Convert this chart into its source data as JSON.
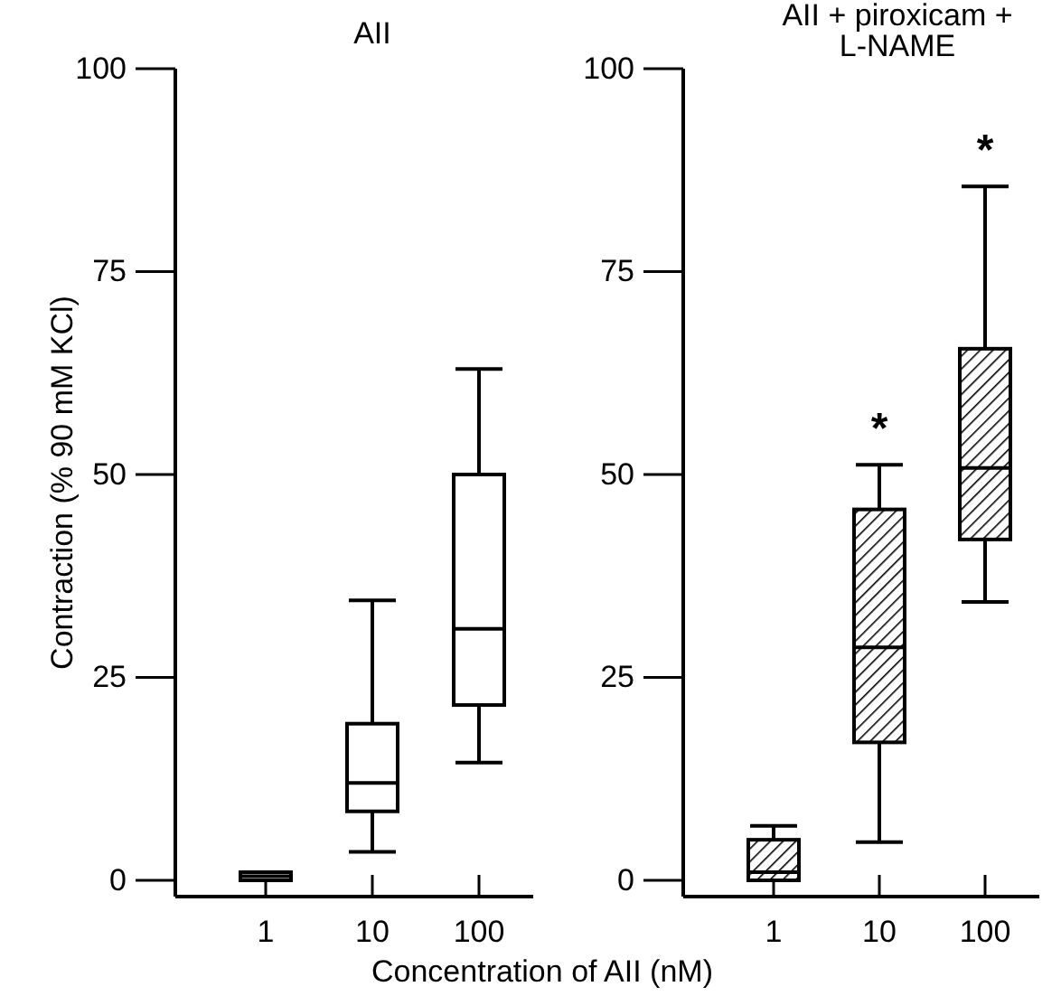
{
  "chart_data": [
    {
      "type": "box",
      "title": "AII",
      "ylabel": "Contraction (% 90 mM KCl)",
      "xlabel": "Concentration of AII (nM)",
      "categories": [
        "1",
        "10",
        "100"
      ],
      "ylim": [
        -2,
        100
      ],
      "yticks": [
        0,
        25,
        50,
        75,
        100
      ],
      "series": [
        {
          "color": "#000000",
          "boxes": [
            {
              "low": 0,
              "q1": 0,
              "median": 0.5,
              "q3": 1,
              "high": 1
            },
            {
              "low": 3.5,
              "q1": 8.5,
              "median": 12,
              "q3": 19.3,
              "high": 34.5
            },
            {
              "low": 14.5,
              "q1": 21.6,
              "median": 31,
              "q3": 50,
              "high": 63
            }
          ]
        }
      ]
    },
    {
      "type": "box",
      "title": "AII + piroxicam + L-NAME",
      "categories": [
        "1",
        "10",
        "100"
      ],
      "ylim": [
        -2,
        100
      ],
      "yticks": [
        0,
        25,
        50,
        75,
        100
      ],
      "series": [
        {
          "color": "#000000",
          "boxes": [
            {
              "low": 0,
              "q1": 0,
              "median": 1,
              "q3": 5,
              "high": 6.7
            },
            {
              "low": 4.7,
              "q1": 17,
              "median": 28.7,
              "q3": 45.7,
              "high": 51.2
            },
            {
              "low": 34.3,
              "q1": 42,
              "median": 50.8,
              "q3": 65.5,
              "high": 85.5
            }
          ]
        }
      ],
      "annotations": [
        "*",
        "*"
      ]
    }
  ]
}
